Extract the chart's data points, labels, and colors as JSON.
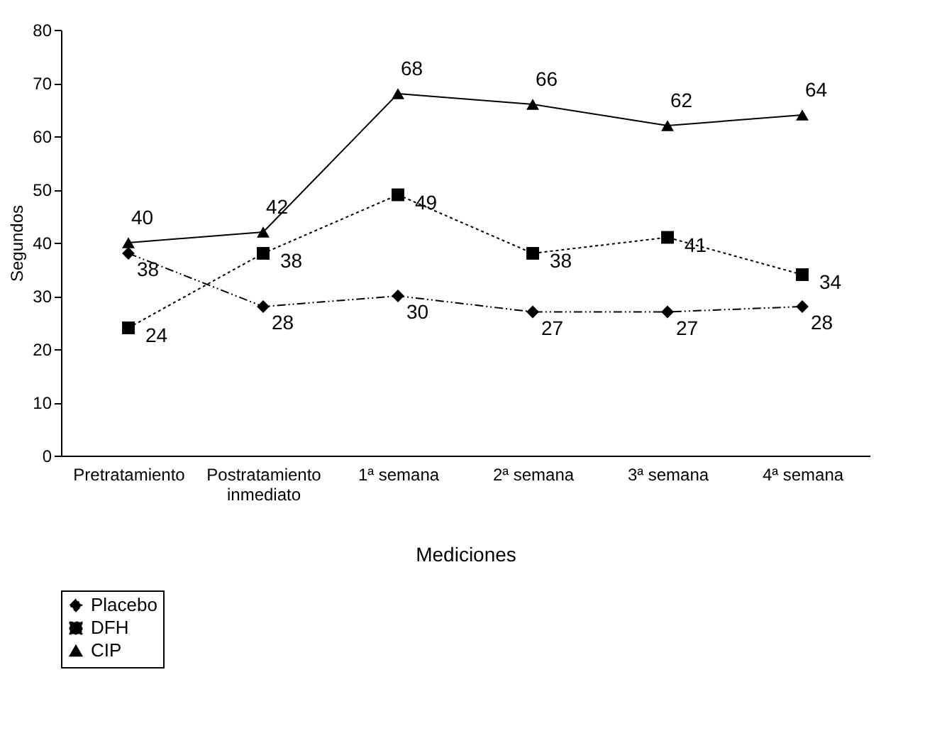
{
  "chart_data": {
    "type": "line",
    "xlabel": "Mediciones",
    "ylabel": "Segundos",
    "categories": [
      "Pretratamiento",
      "Postratamiento inmediato",
      "1ª semana",
      "2ª semana",
      "3ª semana",
      "4ª semana"
    ],
    "series": [
      {
        "name": "Placebo",
        "color": "#000000",
        "marker": "diamond",
        "line_style": "dashdot",
        "values": [
          38,
          28,
          30,
          27,
          27,
          28
        ]
      },
      {
        "name": "DFH",
        "color": "#000000",
        "marker": "square",
        "line_style": "dotted",
        "values": [
          24,
          38,
          49,
          38,
          41,
          34
        ]
      },
      {
        "name": "CIP",
        "color": "#000000",
        "marker": "triangle",
        "line_style": "solid",
        "values": [
          40,
          42,
          68,
          66,
          62,
          64
        ]
      }
    ],
    "ylim": [
      0,
      80
    ],
    "yticks": [
      0,
      10,
      20,
      30,
      40,
      50,
      60,
      70,
      80
    ],
    "data_labels": true,
    "grid": false,
    "legend": "bottom"
  }
}
